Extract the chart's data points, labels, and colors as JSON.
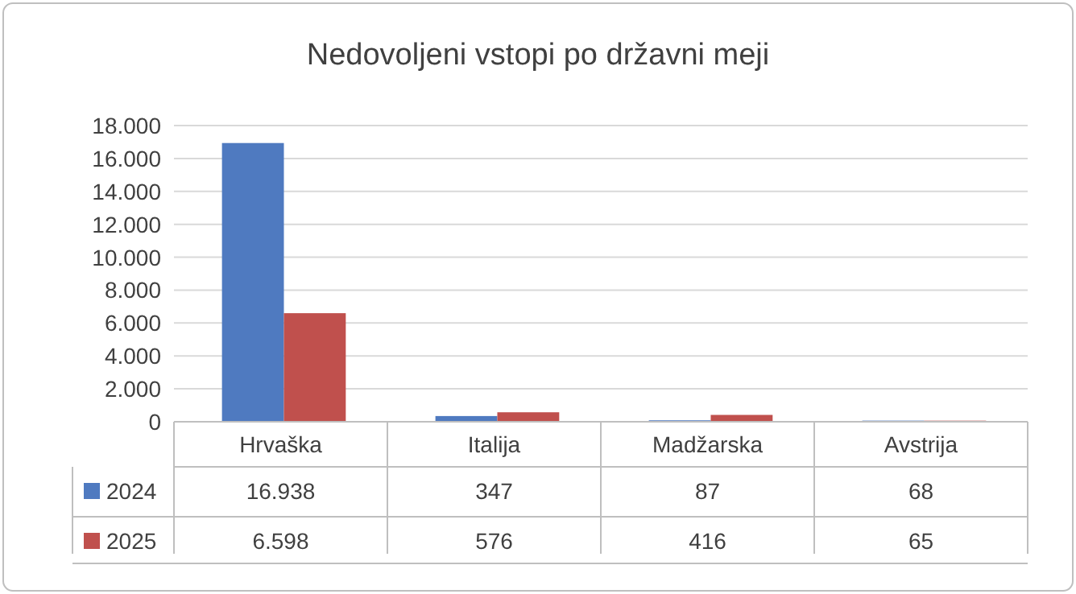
{
  "chart_data": {
    "type": "bar",
    "title": "Nedovoljeni vstopi po državni meji",
    "categories": [
      "Hrvaška",
      "Italija",
      "Madžarska",
      "Avstrija"
    ],
    "series": [
      {
        "name": "2024",
        "color": "#4f7ac0",
        "values": [
          16938,
          347,
          87,
          68
        ],
        "value_labels": [
          "16.938",
          "347",
          "87",
          "68"
        ]
      },
      {
        "name": "2025",
        "color": "#c0504d",
        "values": [
          6598,
          576,
          416,
          65
        ],
        "value_labels": [
          "6.598",
          "576",
          "416",
          "65"
        ]
      }
    ],
    "ylim": [
      0,
      18000
    ],
    "yticks": [
      {
        "value": 0,
        "label": "0"
      },
      {
        "value": 2000,
        "label": "2.000"
      },
      {
        "value": 4000,
        "label": "4.000"
      },
      {
        "value": 6000,
        "label": "6.000"
      },
      {
        "value": 8000,
        "label": "8.000"
      },
      {
        "value": 10000,
        "label": "10.000"
      },
      {
        "value": 12000,
        "label": "12.000"
      },
      {
        "value": 14000,
        "label": "14.000"
      },
      {
        "value": 16000,
        "label": "16.000"
      },
      {
        "value": 18000,
        "label": "18.000"
      }
    ],
    "grid": "y",
    "legend": "bottom"
  }
}
